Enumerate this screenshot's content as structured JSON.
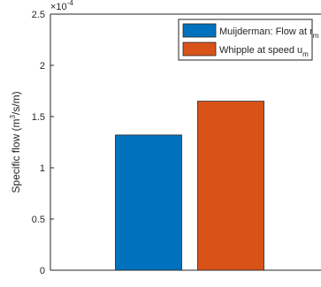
{
  "chart_data": {
    "type": "bar",
    "categories": [
      "Muijderman",
      "Whipple"
    ],
    "values": [
      0.000132,
      0.000165
    ],
    "series": [
      {
        "name": "Muijderman: Flow at r_m",
        "legend_main": "Muijderman: Flow at r",
        "legend_sub": "m",
        "value": 0.000132,
        "color": "#0072BD"
      },
      {
        "name": "Whipple at speed u_m",
        "legend_main": "Whipple at speed u",
        "legend_sub": "m",
        "value": 0.000165,
        "color": "#D95319"
      }
    ],
    "ylabel": "Specific flow (m³/s/m)",
    "ylabel_parts": {
      "main": "Specific flow (m",
      "sup": "3",
      "tail": "/s/m)"
    },
    "ylim": [
      0,
      0.00025
    ],
    "yticks": [
      0,
      0.5,
      1,
      1.5,
      2,
      2.5
    ],
    "ytick_labels": [
      "0",
      "0.5",
      "1",
      "1.5",
      "2",
      "2.5"
    ],
    "y_multiplier": {
      "base": "×10",
      "exp": "-4"
    },
    "legend_position": "top-right",
    "grid": false
  }
}
